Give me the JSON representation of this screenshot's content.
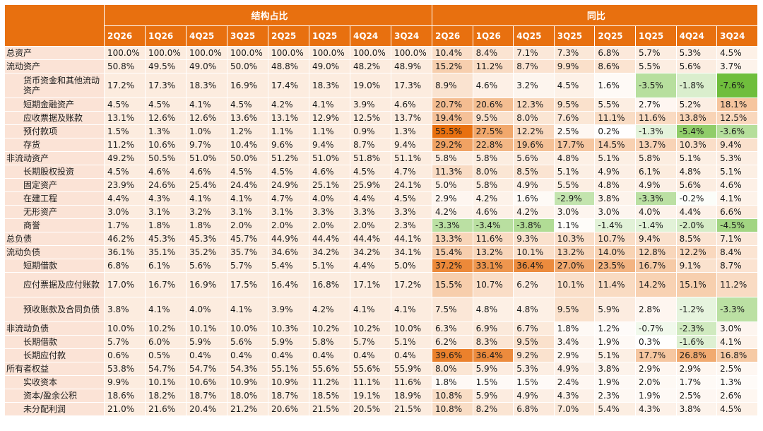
{
  "header": {
    "group_structure": "结构占比",
    "group_yoy": "同比",
    "periods": [
      "2Q26",
      "1Q26",
      "4Q25",
      "3Q25",
      "2Q25",
      "1Q25",
      "4Q24",
      "3Q24"
    ]
  },
  "colors": {
    "header_bg": "#e8700f",
    "label_bg": "#fbe3d6",
    "structure_bg": "#fcecdf",
    "heat_positive_max": "#e8700f",
    "heat_negative_max": "#6fbe3c"
  },
  "rows": [
    {
      "label": "总资产",
      "level": 1,
      "structure": [
        "100.0%",
        "100.0%",
        "100.0%",
        "100.0%",
        "100.0%",
        "100.0%",
        "100.0%",
        "100.0%"
      ],
      "yoy": [
        "10.4%",
        "8.4%",
        "7.1%",
        "7.3%",
        "6.8%",
        "5.7%",
        "5.3%",
        "4.5%"
      ]
    },
    {
      "label": "流动资产",
      "level": 1,
      "structure": [
        "50.8%",
        "49.5%",
        "49.0%",
        "50.0%",
        "48.8%",
        "49.0%",
        "48.2%",
        "48.9%"
      ],
      "yoy": [
        "15.2%",
        "11.2%",
        "8.7%",
        "9.9%",
        "8.6%",
        "5.5%",
        "5.6%",
        "3.7%"
      ]
    },
    {
      "label": "货币资金和其他流动资产",
      "level": 2,
      "tall": true,
      "structure": [
        "17.2%",
        "17.3%",
        "18.3%",
        "16.9%",
        "17.4%",
        "18.3%",
        "19.0%",
        "17.3%"
      ],
      "yoy": [
        "8.9%",
        "4.6%",
        "3.2%",
        "4.5%",
        "1.6%",
        "-3.5%",
        "-1.8%",
        "-7.6%"
      ]
    },
    {
      "label": "短期金融资产",
      "level": 2,
      "structure": [
        "4.5%",
        "4.5%",
        "4.1%",
        "4.5%",
        "4.2%",
        "4.1%",
        "3.9%",
        "4.6%"
      ],
      "yoy": [
        "20.7%",
        "20.6%",
        "12.3%",
        "9.5%",
        "5.5%",
        "2.7%",
        "5.2%",
        "18.1%"
      ]
    },
    {
      "label": "应收票据及账款",
      "level": 2,
      "structure": [
        "13.1%",
        "12.6%",
        "12.6%",
        "13.6%",
        "13.1%",
        "12.9%",
        "12.5%",
        "13.7%"
      ],
      "yoy": [
        "19.4%",
        "9.5%",
        "8.0%",
        "7.6%",
        "11.1%",
        "11.6%",
        "13.8%",
        "12.5%"
      ]
    },
    {
      "label": "预付款项",
      "level": 2,
      "structure": [
        "1.5%",
        "1.3%",
        "1.0%",
        "1.2%",
        "1.1%",
        "1.1%",
        "0.9%",
        "1.3%"
      ],
      "yoy": [
        "55.5%",
        "27.5%",
        "12.2%",
        "2.5%",
        "0.2%",
        "-1.3%",
        "-5.4%",
        "-3.6%"
      ]
    },
    {
      "label": "存货",
      "level": 2,
      "structure": [
        "11.2%",
        "10.6%",
        "9.7%",
        "10.4%",
        "9.6%",
        "9.4%",
        "8.7%",
        "9.4%"
      ],
      "yoy": [
        "29.2%",
        "22.8%",
        "19.6%",
        "17.7%",
        "14.5%",
        "13.7%",
        "10.3%",
        "9.4%"
      ]
    },
    {
      "label": "非流动资产",
      "level": 1,
      "structure": [
        "49.2%",
        "50.5%",
        "51.0%",
        "50.0%",
        "51.2%",
        "51.0%",
        "51.8%",
        "51.1%"
      ],
      "yoy": [
        "5.8%",
        "5.8%",
        "5.6%",
        "4.8%",
        "5.1%",
        "5.8%",
        "5.1%",
        "5.3%"
      ]
    },
    {
      "label": "长期股权投资",
      "level": 2,
      "structure": [
        "4.5%",
        "4.6%",
        "4.6%",
        "4.5%",
        "4.5%",
        "4.6%",
        "4.5%",
        "4.7%"
      ],
      "yoy": [
        "11.3%",
        "8.0%",
        "8.5%",
        "5.1%",
        "4.9%",
        "6.1%",
        "4.8%",
        "5.1%"
      ]
    },
    {
      "label": "固定资产",
      "level": 2,
      "structure": [
        "23.9%",
        "24.6%",
        "25.4%",
        "24.4%",
        "24.9%",
        "25.1%",
        "25.9%",
        "24.1%"
      ],
      "yoy": [
        "5.0%",
        "5.8%",
        "4.9%",
        "5.5%",
        "4.8%",
        "4.9%",
        "5.6%",
        "4.6%"
      ]
    },
    {
      "label": "在建工程",
      "level": 2,
      "structure": [
        "4.4%",
        "4.3%",
        "4.1%",
        "4.1%",
        "4.7%",
        "4.0%",
        "4.4%",
        "4.5%"
      ],
      "yoy": [
        "2.9%",
        "4.2%",
        "1.6%",
        "-2.9%",
        "3.8%",
        "-3.3%",
        "-0.2%",
        "4.1%"
      ]
    },
    {
      "label": "无形资产",
      "level": 2,
      "structure": [
        "3.0%",
        "3.1%",
        "3.2%",
        "3.1%",
        "3.1%",
        "3.3%",
        "3.3%",
        "3.3%"
      ],
      "yoy": [
        "4.2%",
        "4.6%",
        "4.2%",
        "3.0%",
        "3.0%",
        "4.0%",
        "4.4%",
        "6.6%"
      ]
    },
    {
      "label": "商誉",
      "level": 2,
      "structure": [
        "1.7%",
        "1.8%",
        "1.8%",
        "2.0%",
        "2.0%",
        "2.0%",
        "2.0%",
        "2.3%"
      ],
      "yoy": [
        "-3.3%",
        "-3.4%",
        "-3.8%",
        "1.1%",
        "-1.4%",
        "-1.4%",
        "-2.0%",
        "-4.5%"
      ]
    },
    {
      "label": "总负债",
      "level": 1,
      "structure": [
        "46.2%",
        "45.3%",
        "45.3%",
        "45.7%",
        "44.9%",
        "44.4%",
        "44.4%",
        "44.1%"
      ],
      "yoy": [
        "13.3%",
        "11.6%",
        "9.3%",
        "10.3%",
        "10.7%",
        "9.4%",
        "8.5%",
        "7.1%"
      ]
    },
    {
      "label": "流动负债",
      "level": 1,
      "structure": [
        "36.1%",
        "35.1%",
        "35.2%",
        "35.7%",
        "34.6%",
        "34.2%",
        "34.2%",
        "34.1%"
      ],
      "yoy": [
        "15.4%",
        "13.2%",
        "10.1%",
        "13.2%",
        "14.0%",
        "12.8%",
        "12.2%",
        "8.4%"
      ]
    },
    {
      "label": "短期借款",
      "level": 2,
      "structure": [
        "6.8%",
        "6.1%",
        "5.6%",
        "5.7%",
        "5.4%",
        "5.1%",
        "4.4%",
        "5.0%"
      ],
      "yoy": [
        "37.2%",
        "33.1%",
        "36.4%",
        "27.0%",
        "23.5%",
        "16.7%",
        "9.1%",
        "8.7%"
      ]
    },
    {
      "label": "应付票据及应付账款",
      "level": 2,
      "tall": true,
      "structure": [
        "17.0%",
        "16.7%",
        "16.9%",
        "17.5%",
        "16.4%",
        "16.8%",
        "17.1%",
        "17.2%"
      ],
      "yoy": [
        "15.5%",
        "10.7%",
        "6.2%",
        "10.1%",
        "11.4%",
        "14.2%",
        "15.1%",
        "11.2%"
      ]
    },
    {
      "label": "预收账款及合同负债",
      "level": 2,
      "tall": true,
      "structure": [
        "3.8%",
        "4.1%",
        "4.0%",
        "4.1%",
        "3.9%",
        "4.2%",
        "4.1%",
        "4.1%"
      ],
      "yoy": [
        "7.5%",
        "4.8%",
        "4.8%",
        "9.5%",
        "5.9%",
        "2.8%",
        "-1.2%",
        "-3.3%"
      ]
    },
    {
      "label": "非流动负债",
      "level": 1,
      "structure": [
        "10.0%",
        "10.2%",
        "10.1%",
        "10.0%",
        "10.3%",
        "10.2%",
        "10.2%",
        "10.0%"
      ],
      "yoy": [
        "6.3%",
        "6.9%",
        "6.7%",
        "1.8%",
        "1.2%",
        "-0.7%",
        "-2.3%",
        "3.0%"
      ]
    },
    {
      "label": "长期借款",
      "level": 2,
      "structure": [
        "5.7%",
        "6.0%",
        "5.9%",
        "5.6%",
        "5.9%",
        "5.8%",
        "5.7%",
        "5.1%"
      ],
      "yoy": [
        "6.2%",
        "8.3%",
        "9.5%",
        "3.4%",
        "1.9%",
        "0.3%",
        "-1.6%",
        "4.1%"
      ]
    },
    {
      "label": "长期应付款",
      "level": 2,
      "structure": [
        "0.6%",
        "0.5%",
        "0.4%",
        "0.4%",
        "0.4%",
        "0.4%",
        "0.4%",
        "0.4%"
      ],
      "yoy": [
        "39.6%",
        "36.4%",
        "9.2%",
        "2.9%",
        "5.1%",
        "17.7%",
        "26.8%",
        "16.8%"
      ]
    },
    {
      "label": "所有者权益",
      "level": 1,
      "structure": [
        "53.8%",
        "54.7%",
        "54.7%",
        "54.3%",
        "55.1%",
        "55.6%",
        "55.6%",
        "55.9%"
      ],
      "yoy": [
        "8.0%",
        "5.9%",
        "5.3%",
        "4.9%",
        "3.8%",
        "2.9%",
        "2.9%",
        "2.5%"
      ]
    },
    {
      "label": "实收资本",
      "level": 2,
      "structure": [
        "9.9%",
        "10.1%",
        "10.6%",
        "10.9%",
        "10.9%",
        "11.2%",
        "11.1%",
        "11.6%"
      ],
      "yoy": [
        "1.8%",
        "1.5%",
        "1.5%",
        "2.4%",
        "1.9%",
        "2.0%",
        "1.7%",
        "1.3%"
      ]
    },
    {
      "label": "资本/盈余公积",
      "level": 2,
      "structure": [
        "18.6%",
        "18.2%",
        "18.7%",
        "18.0%",
        "18.7%",
        "18.5%",
        "19.1%",
        "18.9%"
      ],
      "yoy": [
        "10.8%",
        "5.9%",
        "4.9%",
        "4.3%",
        "2.3%",
        "1.9%",
        "2.5%",
        "2.6%"
      ]
    },
    {
      "label": "未分配利润",
      "level": 2,
      "structure": [
        "21.0%",
        "21.6%",
        "20.4%",
        "21.2%",
        "20.6%",
        "21.5%",
        "20.5%",
        "21.5%"
      ],
      "yoy": [
        "10.8%",
        "8.2%",
        "6.8%",
        "7.0%",
        "5.4%",
        "4.3%",
        "3.8%",
        "4.5%"
      ]
    }
  ]
}
